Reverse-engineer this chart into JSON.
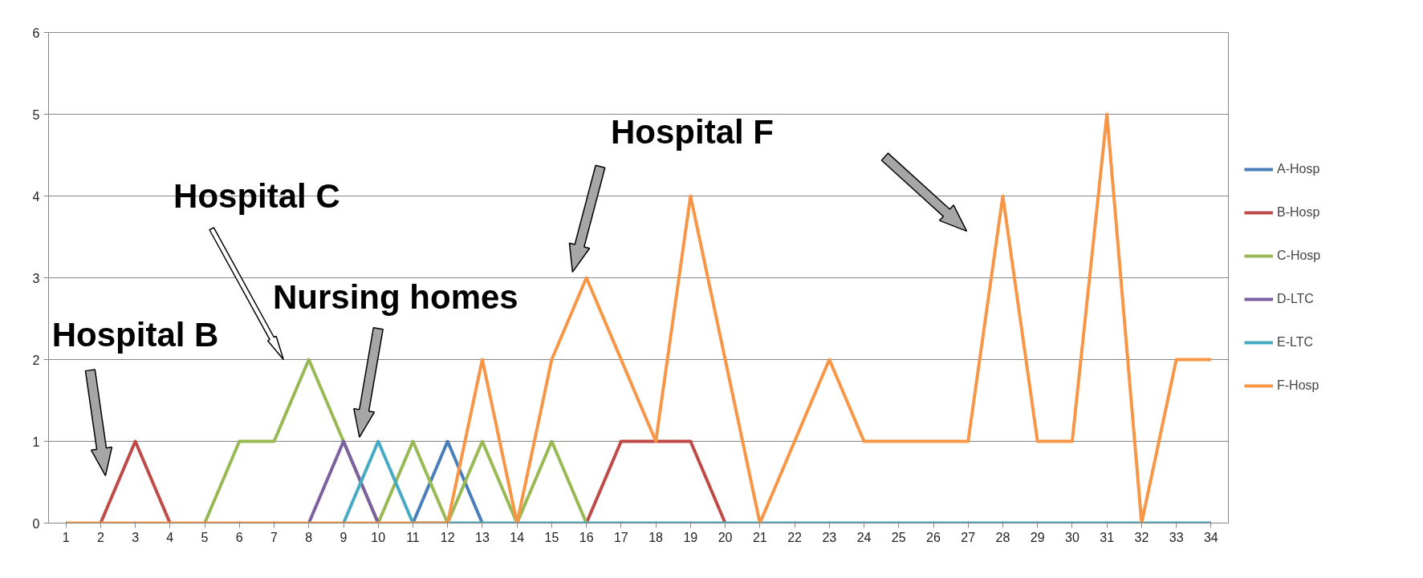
{
  "chart_data": {
    "type": "line",
    "x": [
      1,
      2,
      3,
      4,
      5,
      6,
      7,
      8,
      9,
      10,
      11,
      12,
      13,
      14,
      15,
      16,
      17,
      18,
      19,
      20,
      21,
      22,
      23,
      24,
      25,
      26,
      27,
      28,
      29,
      30,
      31,
      32,
      33,
      34
    ],
    "xlim": [
      0.5,
      34.5
    ],
    "xticks": [
      1,
      2,
      3,
      4,
      5,
      6,
      7,
      8,
      9,
      10,
      11,
      12,
      13,
      14,
      15,
      16,
      17,
      18,
      19,
      20,
      21,
      22,
      23,
      24,
      25,
      26,
      27,
      28,
      29,
      30,
      31,
      32,
      33,
      34
    ],
    "ylim": [
      0,
      6
    ],
    "yticks": [
      0,
      1,
      2,
      3,
      4,
      5,
      6
    ],
    "grid": "y",
    "legend": "right",
    "series": [
      {
        "name": "A-Hosp",
        "color": "#4a7ebb",
        "values": [
          null,
          null,
          null,
          null,
          null,
          null,
          null,
          null,
          null,
          null,
          0,
          1,
          0,
          null,
          null,
          null,
          null,
          null,
          null,
          null,
          null,
          null,
          null,
          null,
          null,
          null,
          null,
          null,
          null,
          null,
          null,
          null,
          null,
          null
        ]
      },
      {
        "name": "B-Hosp",
        "color": "#be4b48",
        "values": [
          null,
          0,
          1,
          0,
          null,
          null,
          null,
          null,
          null,
          null,
          null,
          null,
          null,
          null,
          null,
          0,
          1,
          1,
          1,
          0,
          null,
          null,
          null,
          null,
          null,
          null,
          null,
          null,
          null,
          null,
          null,
          null,
          null,
          null
        ]
      },
      {
        "name": "C-Hosp",
        "color": "#98b954",
        "values": [
          null,
          null,
          null,
          null,
          0,
          1,
          1,
          2,
          1,
          0,
          1,
          0,
          1,
          0,
          1,
          0,
          null,
          null,
          null,
          null,
          null,
          null,
          null,
          null,
          null,
          null,
          null,
          null,
          null,
          null,
          null,
          null,
          null,
          null
        ]
      },
      {
        "name": "D-LTC",
        "color": "#7d60a0",
        "values": [
          null,
          null,
          null,
          null,
          null,
          null,
          null,
          0,
          1,
          0,
          null,
          null,
          null,
          null,
          null,
          null,
          null,
          null,
          null,
          null,
          null,
          null,
          null,
          null,
          null,
          null,
          null,
          null,
          null,
          null,
          null,
          null,
          null,
          null
        ]
      },
      {
        "name": "E-LTC",
        "color": "#46aac5",
        "values": [
          null,
          null,
          null,
          null,
          null,
          null,
          null,
          null,
          0,
          1,
          0,
          0,
          0,
          0,
          0,
          0,
          0,
          0,
          0,
          0,
          0,
          0,
          0,
          0,
          0,
          0,
          0,
          0,
          0,
          0,
          0,
          0,
          0,
          0
        ]
      },
      {
        "name": "F-Hosp",
        "color": "#f79646",
        "values": [
          0,
          0,
          0,
          0,
          0,
          0,
          0,
          0,
          0,
          0,
          0,
          0,
          2,
          0,
          2,
          3,
          2,
          1,
          4,
          2,
          0,
          1,
          2,
          1,
          1,
          1,
          1,
          4,
          1,
          1,
          5,
          0,
          2,
          2
        ]
      }
    ],
    "annotations": [
      "Hospital B",
      "Hospital C",
      "Nursing homes",
      "Hospital F"
    ]
  }
}
